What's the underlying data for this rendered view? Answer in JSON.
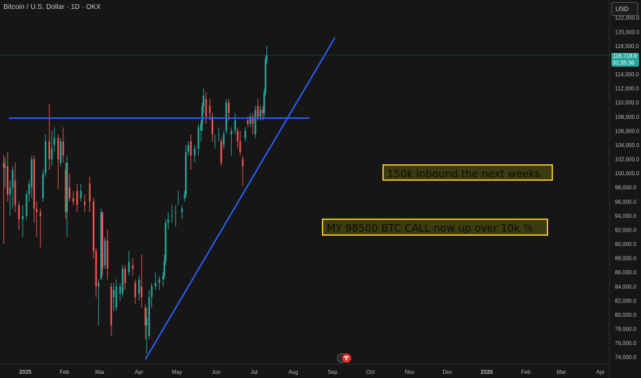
{
  "header": {
    "symbol_title": "Bitcoin / U.S. Dollar · 1D · OKX"
  },
  "toolbar": {
    "currency_label": "USD"
  },
  "price_tag": {
    "price": "116,718.9",
    "countdown": "02:35:36"
  },
  "annotations": {
    "note_1": "150k inbound the next weeks",
    "note_2": "MY 98500 BTC CALL now up over 10k %"
  },
  "colors": {
    "background": "#161616",
    "up": "#26a69a",
    "down": "#ef5350",
    "trendline": "#2962ff",
    "note_border": "#e6c229"
  },
  "chart_data": {
    "type": "candlestick",
    "title": "Bitcoin / U.S. Dollar · 1D · OKX",
    "x_ticks": [
      "2025",
      "Feb",
      "Mar",
      "Apr",
      "May",
      "Jun",
      "Jul",
      "Aug",
      "Sep",
      "Oct",
      "Nov",
      "Dec",
      "2026",
      "Feb",
      "Mar",
      "Apr"
    ],
    "y_ticks": [
      74000,
      76000,
      78000,
      80000,
      82000,
      84000,
      86000,
      88000,
      90000,
      92000,
      94000,
      96000,
      98000,
      100000,
      102000,
      104000,
      106000,
      108000,
      110000,
      112000,
      114000,
      116000,
      118000,
      120000,
      122000
    ],
    "ylim": [
      73000,
      124500
    ],
    "xlim": [
      "2024-12-12",
      "2026-04-08"
    ],
    "last_price": 116718.9,
    "price_line": 116718.9,
    "candles": [
      {
        "d": "2024-12-15",
        "o": 101500,
        "h": 102500,
        "l": 90000,
        "c": 100800
      },
      {
        "d": "2024-12-16",
        "o": 100800,
        "h": 102200,
        "l": 98000,
        "c": 101000
      },
      {
        "d": "2024-12-18",
        "o": 101000,
        "h": 103000,
        "l": 96000,
        "c": 97000
      },
      {
        "d": "2024-12-20",
        "o": 97000,
        "h": 99000,
        "l": 94000,
        "c": 98000
      },
      {
        "d": "2024-12-22",
        "o": 98000,
        "h": 101000,
        "l": 95000,
        "c": 100500
      },
      {
        "d": "2024-12-24",
        "o": 99000,
        "h": 101500,
        "l": 94500,
        "c": 95500
      },
      {
        "d": "2024-12-27",
        "o": 95500,
        "h": 96000,
        "l": 92000,
        "c": 93500
      },
      {
        "d": "2024-12-30",
        "o": 93500,
        "h": 95500,
        "l": 91000,
        "c": 94000
      },
      {
        "d": "2025-01-02",
        "o": 94000,
        "h": 97500,
        "l": 93500,
        "c": 97000
      },
      {
        "d": "2025-01-04",
        "o": 97000,
        "h": 99000,
        "l": 96000,
        "c": 98500
      },
      {
        "d": "2025-01-06",
        "o": 98000,
        "h": 102500,
        "l": 96500,
        "c": 102000
      },
      {
        "d": "2025-01-08",
        "o": 102000,
        "h": 102500,
        "l": 93000,
        "c": 95000
      },
      {
        "d": "2025-01-10",
        "o": 95000,
        "h": 96000,
        "l": 91000,
        "c": 94500
      },
      {
        "d": "2025-01-13",
        "o": 94500,
        "h": 95000,
        "l": 89500,
        "c": 94000
      },
      {
        "d": "2025-01-15",
        "o": 96500,
        "h": 100500,
        "l": 96000,
        "c": 100000
      },
      {
        "d": "2025-01-17",
        "o": 100000,
        "h": 105500,
        "l": 99500,
        "c": 104500
      },
      {
        "d": "2025-01-20",
        "o": 104500,
        "h": 109800,
        "l": 100500,
        "c": 102000
      },
      {
        "d": "2025-01-22",
        "o": 102000,
        "h": 106000,
        "l": 101000,
        "c": 103500
      },
      {
        "d": "2025-01-24",
        "o": 104000,
        "h": 106500,
        "l": 103000,
        "c": 105000
      },
      {
        "d": "2025-01-27",
        "o": 105000,
        "h": 105500,
        "l": 97800,
        "c": 102000
      },
      {
        "d": "2025-01-29",
        "o": 101500,
        "h": 105000,
        "l": 101000,
        "c": 104500
      },
      {
        "d": "2025-01-31",
        "o": 104500,
        "h": 106500,
        "l": 101500,
        "c": 102500
      },
      {
        "d": "2025-02-02",
        "o": 100500,
        "h": 101500,
        "l": 93500,
        "c": 94500
      },
      {
        "d": "2025-02-03",
        "o": 94500,
        "h": 102500,
        "l": 91000,
        "c": 101500
      },
      {
        "d": "2025-02-05",
        "o": 98000,
        "h": 100000,
        "l": 96000,
        "c": 96500
      },
      {
        "d": "2025-02-08",
        "o": 96500,
        "h": 97500,
        "l": 95500,
        "c": 96000
      },
      {
        "d": "2025-02-11",
        "o": 97500,
        "h": 98500,
        "l": 94500,
        "c": 95500
      },
      {
        "d": "2025-02-14",
        "o": 96500,
        "h": 98500,
        "l": 96000,
        "c": 97500
      },
      {
        "d": "2025-02-17",
        "o": 96000,
        "h": 97000,
        "l": 94500,
        "c": 95500
      },
      {
        "d": "2025-02-21",
        "o": 98500,
        "h": 99500,
        "l": 94500,
        "c": 96000
      },
      {
        "d": "2025-02-24",
        "o": 96000,
        "h": 96500,
        "l": 88000,
        "c": 89000
      },
      {
        "d": "2025-02-26",
        "o": 89000,
        "h": 89500,
        "l": 82500,
        "c": 84000
      },
      {
        "d": "2025-02-28",
        "o": 84000,
        "h": 85000,
        "l": 78500,
        "c": 84500
      },
      {
        "d": "2025-03-02",
        "o": 85000,
        "h": 95000,
        "l": 85000,
        "c": 94500
      },
      {
        "d": "2025-03-03",
        "o": 94500,
        "h": 94500,
        "l": 85500,
        "c": 86500
      },
      {
        "d": "2025-03-05",
        "o": 87000,
        "h": 91000,
        "l": 86500,
        "c": 90500
      },
      {
        "d": "2025-03-07",
        "o": 90500,
        "h": 92000,
        "l": 85000,
        "c": 86500
      },
      {
        "d": "2025-03-10",
        "o": 84000,
        "h": 84500,
        "l": 77000,
        "c": 78500
      },
      {
        "d": "2025-03-12",
        "o": 82500,
        "h": 84500,
        "l": 80500,
        "c": 83500
      },
      {
        "d": "2025-03-14",
        "o": 81000,
        "h": 85000,
        "l": 80500,
        "c": 84000
      },
      {
        "d": "2025-03-17",
        "o": 83000,
        "h": 84500,
        "l": 82000,
        "c": 84000
      },
      {
        "d": "2025-03-19",
        "o": 83000,
        "h": 87000,
        "l": 82500,
        "c": 86500
      },
      {
        "d": "2025-03-21",
        "o": 86500,
        "h": 87000,
        "l": 83500,
        "c": 84500
      },
      {
        "d": "2025-03-24",
        "o": 86000,
        "h": 89000,
        "l": 85500,
        "c": 87500
      },
      {
        "d": "2025-03-27",
        "o": 87000,
        "h": 88000,
        "l": 85500,
        "c": 86500
      },
      {
        "d": "2025-03-29",
        "o": 84500,
        "h": 85000,
        "l": 81500,
        "c": 82500
      },
      {
        "d": "2025-04-01",
        "o": 83000,
        "h": 85500,
        "l": 82000,
        "c": 85000
      },
      {
        "d": "2025-04-03",
        "o": 84000,
        "h": 88500,
        "l": 81000,
        "c": 82500
      },
      {
        "d": "2025-04-06",
        "o": 81000,
        "h": 81500,
        "l": 76500,
        "c": 78500
      },
      {
        "d": "2025-04-07",
        "o": 78500,
        "h": 81000,
        "l": 74500,
        "c": 79500
      },
      {
        "d": "2025-04-09",
        "o": 77000,
        "h": 83500,
        "l": 76500,
        "c": 82500
      },
      {
        "d": "2025-04-11",
        "o": 82500,
        "h": 84500,
        "l": 81000,
        "c": 84000
      },
      {
        "d": "2025-04-14",
        "o": 84000,
        "h": 86000,
        "l": 83500,
        "c": 84500
      },
      {
        "d": "2025-04-17",
        "o": 84500,
        "h": 85500,
        "l": 83500,
        "c": 85000
      },
      {
        "d": "2025-04-20",
        "o": 85000,
        "h": 86000,
        "l": 84000,
        "c": 85500
      },
      {
        "d": "2025-04-21",
        "o": 85500,
        "h": 88500,
        "l": 85000,
        "c": 87500
      },
      {
        "d": "2025-04-22",
        "o": 87500,
        "h": 93500,
        "l": 87000,
        "c": 93000
      },
      {
        "d": "2025-04-24",
        "o": 93000,
        "h": 94500,
        "l": 92000,
        "c": 93500
      },
      {
        "d": "2025-04-27",
        "o": 94000,
        "h": 95500,
        "l": 93000,
        "c": 94000
      },
      {
        "d": "2025-04-30",
        "o": 94500,
        "h": 95500,
        "l": 92500,
        "c": 94500
      },
      {
        "d": "2025-05-02",
        "o": 96500,
        "h": 97500,
        "l": 95500,
        "c": 96500
      },
      {
        "d": "2025-05-05",
        "o": 94500,
        "h": 95500,
        "l": 93500,
        "c": 95000
      },
      {
        "d": "2025-05-07",
        "o": 96500,
        "h": 97500,
        "l": 96000,
        "c": 97000
      },
      {
        "d": "2025-05-08",
        "o": 97000,
        "h": 104000,
        "l": 96500,
        "c": 103000
      },
      {
        "d": "2025-05-10",
        "o": 103000,
        "h": 104500,
        "l": 102500,
        "c": 104000
      },
      {
        "d": "2025-05-12",
        "o": 104500,
        "h": 105500,
        "l": 100500,
        "c": 102500
      },
      {
        "d": "2025-05-15",
        "o": 102500,
        "h": 104000,
        "l": 101500,
        "c": 103500
      },
      {
        "d": "2025-05-18",
        "o": 103500,
        "h": 107000,
        "l": 102500,
        "c": 106500
      },
      {
        "d": "2025-05-20",
        "o": 106000,
        "h": 107500,
        "l": 104500,
        "c": 107000
      },
      {
        "d": "2025-05-21",
        "o": 107000,
        "h": 110000,
        "l": 106000,
        "c": 109500
      },
      {
        "d": "2025-05-22",
        "o": 109500,
        "h": 112000,
        "l": 108500,
        "c": 111000
      },
      {
        "d": "2025-05-24",
        "o": 110500,
        "h": 111500,
        "l": 107000,
        "c": 108000
      },
      {
        "d": "2025-05-27",
        "o": 109500,
        "h": 110500,
        "l": 107500,
        "c": 108500
      },
      {
        "d": "2025-05-29",
        "o": 108000,
        "h": 108500,
        "l": 104500,
        "c": 105500
      },
      {
        "d": "2025-05-31",
        "o": 104500,
        "h": 105500,
        "l": 103500,
        "c": 104500
      },
      {
        "d": "2025-06-03",
        "o": 105500,
        "h": 106500,
        "l": 104500,
        "c": 105500
      },
      {
        "d": "2025-06-05",
        "o": 104500,
        "h": 105000,
        "l": 101000,
        "c": 101500
      },
      {
        "d": "2025-06-07",
        "o": 104000,
        "h": 106000,
        "l": 103500,
        "c": 105500
      },
      {
        "d": "2025-06-09",
        "o": 106000,
        "h": 110500,
        "l": 105500,
        "c": 110000
      },
      {
        "d": "2025-06-11",
        "o": 110000,
        "h": 110500,
        "l": 107500,
        "c": 108500
      },
      {
        "d": "2025-06-13",
        "o": 105500,
        "h": 106500,
        "l": 102500,
        "c": 106000
      },
      {
        "d": "2025-06-16",
        "o": 106000,
        "h": 108500,
        "l": 105500,
        "c": 107500
      },
      {
        "d": "2025-06-18",
        "o": 106000,
        "h": 106500,
        "l": 103500,
        "c": 104500
      },
      {
        "d": "2025-06-20",
        "o": 104500,
        "h": 106000,
        "l": 102500,
        "c": 103000
      },
      {
        "d": "2025-06-22",
        "o": 102000,
        "h": 102500,
        "l": 98200,
        "c": 101000
      },
      {
        "d": "2025-06-24",
        "o": 105000,
        "h": 106500,
        "l": 104500,
        "c": 106000
      },
      {
        "d": "2025-06-26",
        "o": 107500,
        "h": 108000,
        "l": 106500,
        "c": 107000
      },
      {
        "d": "2025-06-28",
        "o": 107000,
        "h": 108500,
        "l": 106500,
        "c": 108000
      },
      {
        "d": "2025-06-30",
        "o": 108000,
        "h": 108500,
        "l": 105500,
        "c": 107000
      },
      {
        "d": "2025-07-02",
        "o": 105500,
        "h": 109500,
        "l": 105000,
        "c": 109000
      },
      {
        "d": "2025-07-04",
        "o": 109500,
        "h": 110500,
        "l": 107500,
        "c": 108000
      },
      {
        "d": "2025-07-06",
        "o": 108000,
        "h": 109500,
        "l": 107500,
        "c": 109000
      },
      {
        "d": "2025-07-08",
        "o": 109000,
        "h": 109500,
        "l": 107500,
        "c": 108500
      },
      {
        "d": "2025-07-09",
        "o": 108500,
        "h": 112000,
        "l": 108000,
        "c": 111500
      },
      {
        "d": "2025-07-10",
        "o": 111500,
        "h": 116500,
        "l": 111000,
        "c": 116000
      },
      {
        "d": "2025-07-11",
        "o": 116000,
        "h": 118000,
        "l": 115500,
        "c": 116718.9
      }
    ],
    "lines": [
      {
        "name": "",
        "points": [
          [
            "2024-12-19",
            107800
          ],
          [
            "2025-08-14",
            107800
          ]
        ]
      },
      {
        "name": "",
        "points": [
          [
            "2025-04-06",
            73700
          ],
          [
            "2025-09-03",
            119200
          ]
        ]
      }
    ],
    "notes": [
      {
        "text": "150k inbound the next weeks"
      },
      {
        "text": "MY 98500 BTC CALL now up over 10k %"
      }
    ],
    "grid": false
  }
}
